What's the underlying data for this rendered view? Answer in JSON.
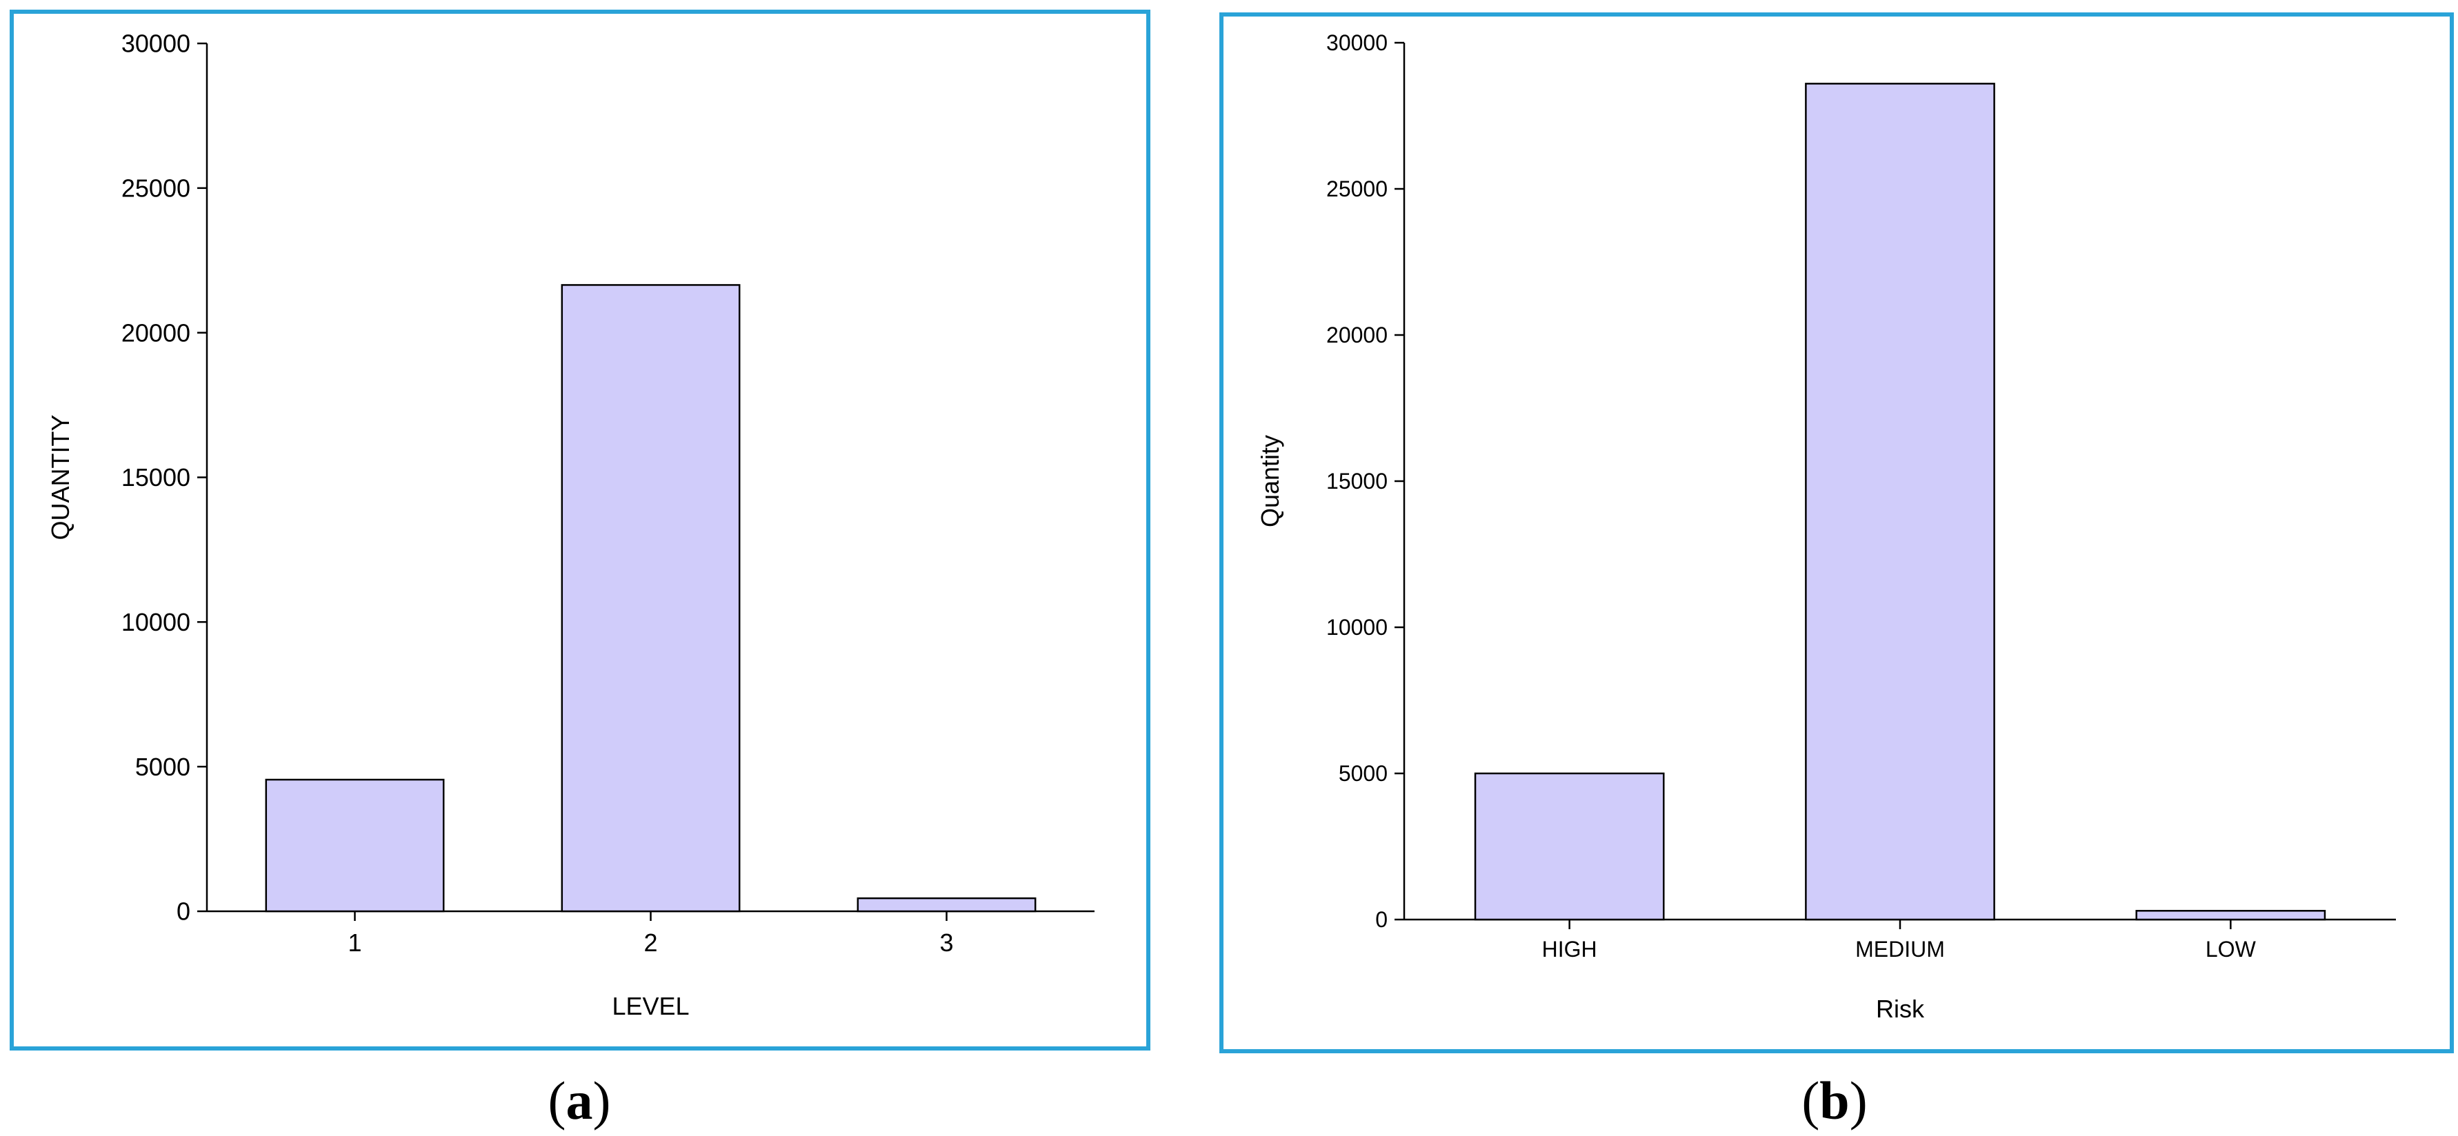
{
  "chart_data": [
    {
      "type": "bar",
      "panel_label": "a",
      "categories": [
        "1",
        "2",
        "3"
      ],
      "values": [
        4550,
        21650,
        450
      ],
      "xlabel": "LEVEL",
      "ylabel": "QUANTITY",
      "ylim": [
        0,
        30000
      ],
      "yticks": [
        0,
        5000,
        10000,
        15000,
        20000,
        25000,
        30000
      ],
      "grid": false,
      "bar_color": "#d0ccfa",
      "bar_edge_color": "#000000"
    },
    {
      "type": "bar",
      "panel_label": "b",
      "categories": [
        "HIGH",
        "MEDIUM",
        "LOW"
      ],
      "values": [
        5000,
        28600,
        300
      ],
      "xlabel": "Risk",
      "ylabel": "Quantity",
      "ylim": [
        0,
        30000
      ],
      "yticks": [
        0,
        5000,
        10000,
        15000,
        20000,
        25000,
        30000
      ],
      "grid": false,
      "bar_color": "#d0ccfa",
      "bar_edge_color": "#000000"
    }
  ],
  "captions": [
    "a",
    "b"
  ],
  "border_color": "#2aa3d8"
}
